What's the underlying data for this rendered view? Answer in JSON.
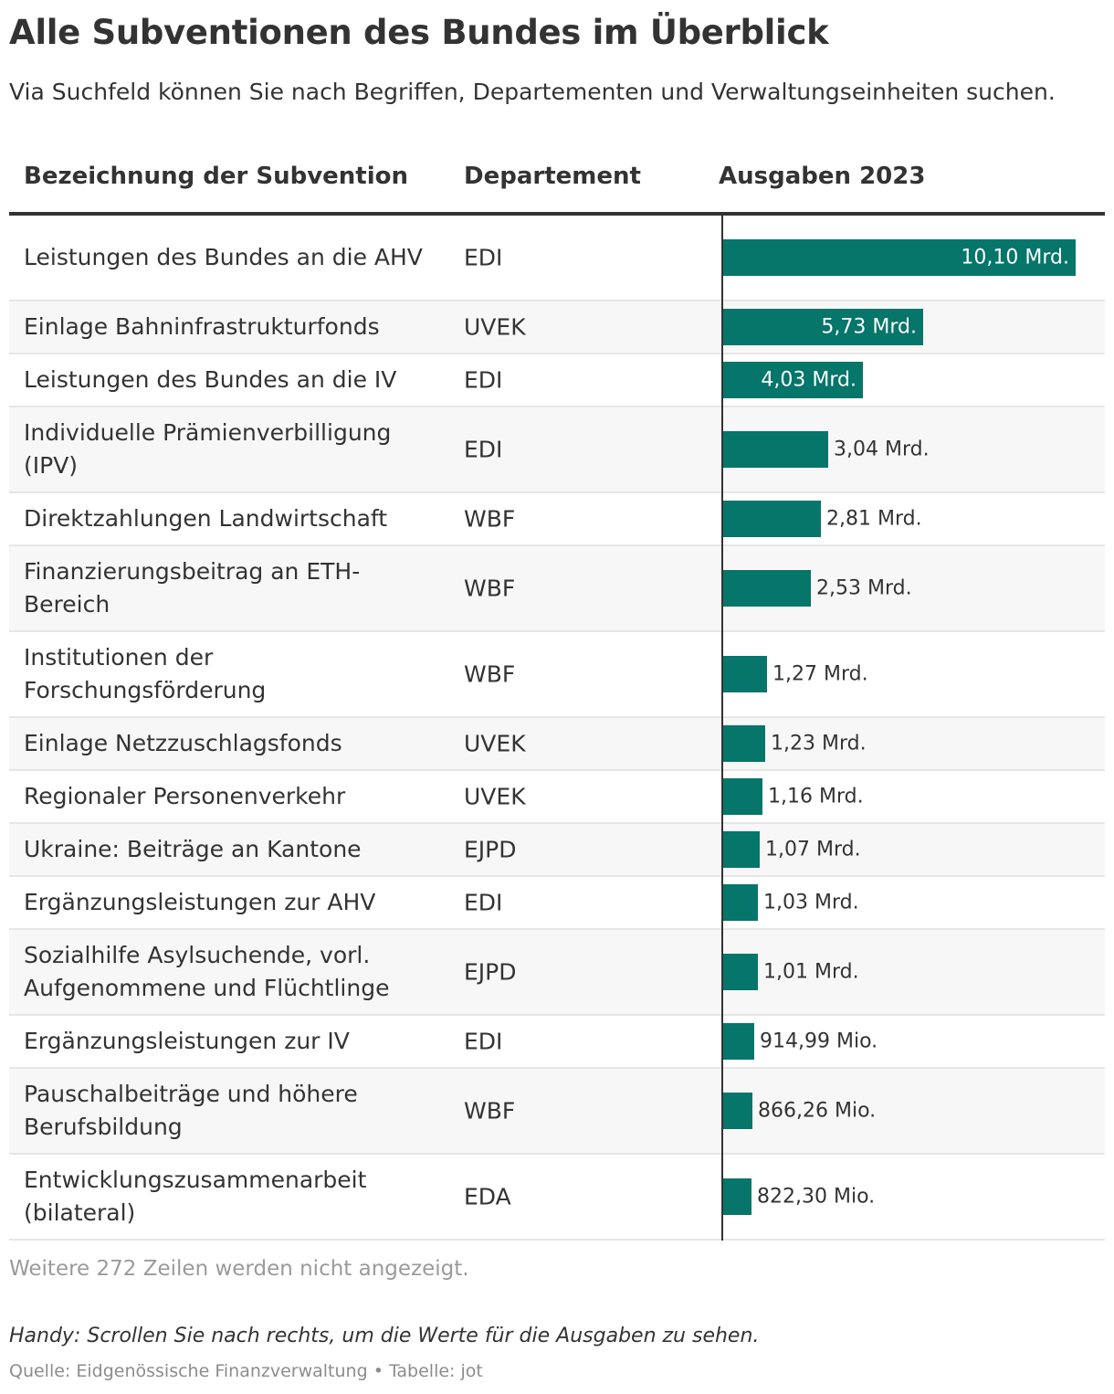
{
  "title": "Alle Subventionen des Bundes im Überblick",
  "subtitle": "Via Suchfeld können Sie nach Begriffen, Departementen und Verwaltungseinheiten suchen.",
  "colors": {
    "bar": "#06756a",
    "text": "#333333",
    "muted": "#9a9a9a",
    "row_alt": "#f7f7f7"
  },
  "chart_data": {
    "type": "table",
    "columns": [
      "Bezeichnung der Subvention",
      "Departement",
      "Ausgaben 2023"
    ],
    "value_unit": "Mio. CHF",
    "rows": [
      {
        "name": "Leistungen des Bundes an die AHV",
        "dept": "EDI",
        "value": 10100,
        "label": "10,10 Mrd."
      },
      {
        "name": "Einlage Bahninfrastrukturfonds",
        "dept": "UVEK",
        "value": 5730,
        "label": "5,73 Mrd."
      },
      {
        "name": "Leistungen des Bundes an die IV",
        "dept": "EDI",
        "value": 4030,
        "label": "4,03 Mrd."
      },
      {
        "name": "Individuelle Prämienverbilligung (IPV)",
        "dept": "EDI",
        "value": 3040,
        "label": "3,04 Mrd."
      },
      {
        "name": "Direktzahlungen Landwirtschaft",
        "dept": "WBF",
        "value": 2810,
        "label": "2,81 Mrd."
      },
      {
        "name": "Finanzierungsbeitrag an ETH-Bereich",
        "dept": "WBF",
        "value": 2530,
        "label": "2,53 Mrd."
      },
      {
        "name": "Institutionen der Forschungsförderung",
        "dept": "WBF",
        "value": 1270,
        "label": "1,27 Mrd."
      },
      {
        "name": "Einlage Netzzuschlagsfonds",
        "dept": "UVEK",
        "value": 1230,
        "label": "1,23 Mrd."
      },
      {
        "name": "Regionaler Personenverkehr",
        "dept": "UVEK",
        "value": 1160,
        "label": "1,16 Mrd."
      },
      {
        "name": "Ukraine: Beiträge an Kantone",
        "dept": "EJPD",
        "value": 1070,
        "label": "1,07 Mrd."
      },
      {
        "name": "Ergänzungsleistungen zur AHV",
        "dept": "EDI",
        "value": 1030,
        "label": "1,03 Mrd."
      },
      {
        "name": "Sozialhilfe Asylsuchende, vorl. Aufgenommene und Flüchtlinge",
        "dept": "EJPD",
        "value": 1010,
        "label": "1,01 Mrd."
      },
      {
        "name": "Ergänzungsleistungen zur IV",
        "dept": "EDI",
        "value": 914.99,
        "label": "914,99 Mio."
      },
      {
        "name": "Pauschalbeiträge und höhere Berufsbildung",
        "dept": "WBF",
        "value": 866.26,
        "label": "866,26 Mio."
      },
      {
        "name": "Entwicklungszusammenarbeit (bilateral)",
        "dept": "EDA",
        "value": 822.3,
        "label": "822,30 Mio."
      }
    ]
  },
  "more_rows": "Weitere 272 Zeilen werden nicht angezeigt.",
  "note": "Handy: Scrollen Sie nach rechts, um die Werte für die Ausgaben zu sehen.",
  "source": "Quelle: Eidgenössische Finanzverwaltung • Tabelle: jot"
}
